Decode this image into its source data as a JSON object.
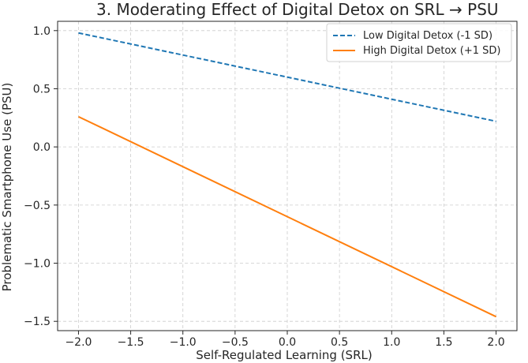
{
  "chart_data": {
    "type": "line",
    "title": "3. Moderating Effect of Digital Detox on SRL → PSU",
    "xlabel": "Self-Regulated Learning (SRL)",
    "ylabel": "Problematic Smartphone Use (PSU)",
    "xlim": [
      -2.2,
      2.2
    ],
    "ylim": [
      -1.58,
      1.08
    ],
    "xticks": [
      -2.0,
      -1.5,
      -1.0,
      -0.5,
      0.0,
      0.5,
      1.0,
      1.5,
      2.0
    ],
    "xtick_labels": [
      "−2.0",
      "−1.5",
      "−1.0",
      "−0.5",
      "0.0",
      "0.5",
      "1.0",
      "1.5",
      "2.0"
    ],
    "yticks": [
      1.0,
      0.5,
      0.0,
      -0.5,
      -1.0,
      -1.5
    ],
    "ytick_labels": [
      "1.0",
      "0.5",
      "0.0",
      "−0.5",
      "−1.0",
      "−1.5"
    ],
    "grid": true,
    "legend_position": "top-right",
    "series": [
      {
        "name": "Low Digital Detox (-1 SD)",
        "color": "#1f77b4",
        "style": "dashed",
        "x": [
          -2.0,
          2.0
        ],
        "y": [
          0.98,
          0.22
        ]
      },
      {
        "name": "High Digital Detox (+1 SD)",
        "color": "#ff7f0e",
        "style": "solid",
        "x": [
          -2.0,
          2.0
        ],
        "y": [
          0.26,
          -1.46
        ]
      }
    ]
  }
}
